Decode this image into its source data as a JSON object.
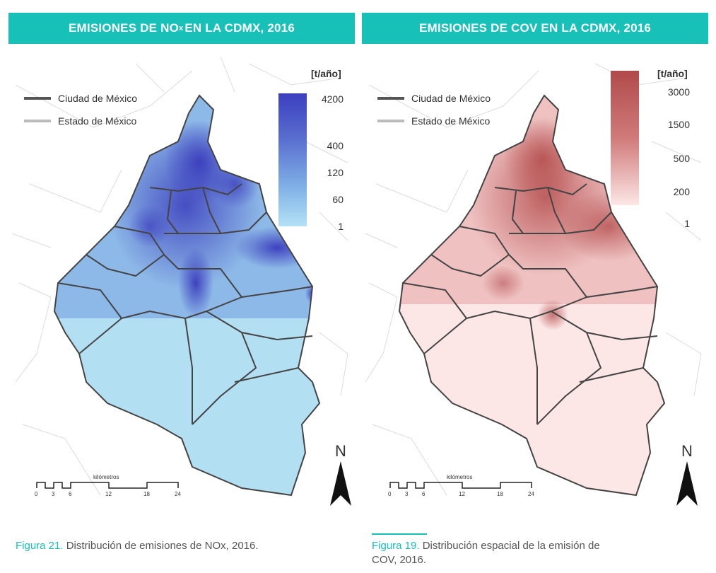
{
  "left_panel": {
    "title_prefix": "EMISIONES DE NO",
    "title_sub": "x",
    "title_suffix": " EN LA CDMX, 2016",
    "legend": [
      {
        "label": "Ciudad de México",
        "color": "#555555"
      },
      {
        "label": "Estado de México",
        "color": "#bbbbbb"
      }
    ],
    "scale_unit": "[t/año]",
    "scale_ticks": [
      "4200",
      "400",
      "120",
      "60",
      "1"
    ],
    "color_high": "#3b3fbf",
    "color_low": "#b5e1f5",
    "north": "N",
    "scalebar_title": "kilómetros",
    "scalebar_ticks": [
      "0",
      "3",
      "6",
      "12",
      "18",
      "24"
    ],
    "caption_label": "Figura 21.",
    "caption_text": " Distribución de emisiones de NOx, 2016."
  },
  "right_panel": {
    "title": "EMISIONES DE COV EN LA CDMX, 2016",
    "legend": [
      {
        "label": "Ciudad de México",
        "color": "#555555"
      },
      {
        "label": "Estado de México",
        "color": "#bbbbbb"
      }
    ],
    "scale_unit": "[t/año]",
    "scale_ticks": [
      "3000",
      "1500",
      "500",
      "200",
      "1"
    ],
    "color_high": "#b14a4a",
    "color_low": "#fce4e4",
    "north": "N",
    "scalebar_title": "kilómetros",
    "scalebar_ticks": [
      "0",
      "3",
      "6",
      "12",
      "18",
      "24"
    ],
    "caption_label": "Figura 19.",
    "caption_text": " Distribución espacial de la emisión de",
    "caption_text_2": "COV, 2016."
  }
}
